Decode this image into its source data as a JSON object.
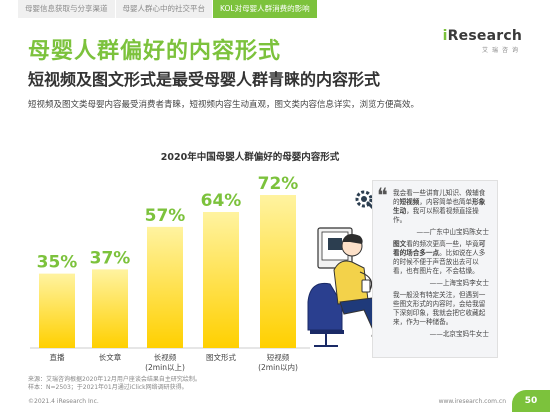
{
  "tabs": [
    {
      "label": "母婴信息获取与分享渠道",
      "active": false
    },
    {
      "label": "母婴人群心中的社交平台",
      "active": false
    },
    {
      "label": "KOL对母婴人群消费的影响",
      "active": true
    }
  ],
  "logo": {
    "mark_i": "i",
    "mark_rest": "Research",
    "sub": "艾瑞咨询"
  },
  "heading": {
    "title": "母婴人群偏好的内容形式",
    "subtitle": "短视频及图文形式是最受母婴人群青睐的内容形式",
    "description": "短视频及图文类母婴内容最受消费者青睐，短视频内容生动直观，图文类内容信息详实，浏览方便高效。"
  },
  "chart_data": {
    "type": "bar",
    "title": "2020年中国母婴人群偏好的母婴内容形式",
    "categories": [
      "直播",
      "长文章",
      "长视频\n(2min以上)",
      "图文形式",
      "短视频\n(2min以内)"
    ],
    "values": [
      35,
      37,
      57,
      64,
      72
    ],
    "value_labels": [
      "35%",
      "37%",
      "57%",
      "64%",
      "72%"
    ],
    "unit": "%",
    "highlight_color": "#ffd000",
    "bar_color_top": "#fff3a0",
    "label_color": "#7cc23c"
  },
  "quotes": [
    {
      "parts": [
        {
          "t": "我会看一些讲育儿知识、做辅食的",
          "b": false
        },
        {
          "t": "短视频",
          "b": true
        },
        {
          "t": "，内容简单也简单",
          "b": false
        },
        {
          "t": "形象生动",
          "b": true
        },
        {
          "t": "，我可以照着视频直接操作。",
          "b": false
        }
      ],
      "signature": "——广东中山宝妈陈女士"
    },
    {
      "parts": [
        {
          "t": "图文",
          "b": true
        },
        {
          "t": "看的频次更高一些，毕竟",
          "b": false
        },
        {
          "t": "可看的场合多一点",
          "b": true
        },
        {
          "t": "。比如说在人多的时候不便于声音放出去可以看，也有图片在，不会枯燥。",
          "b": false
        }
      ],
      "signature": "——上海宝妈李女士"
    },
    {
      "parts": [
        {
          "t": "我一般没有特定关注，但遇到一些图文形式的内容时，会给我留下深刻印象，我就会把它收藏起来，作为一种储备。",
          "b": false
        }
      ],
      "signature": "——北京宝妈牛女士"
    }
  ],
  "source": {
    "line1": "来源：艾瑞咨询根据2020年12月用户座谈会结果自主研究绘制。",
    "line2": "样本：N=2503；于2021年01月通过iClick网络调研获得。"
  },
  "footer": {
    "copyright": "©2021.4 iResearch Inc.",
    "url": "www.iresearch.com.cn",
    "page": "50"
  },
  "icons": {
    "quote": "left-quote-icon",
    "gear": "gear-wrench-icon",
    "person": "person-with-phone-illustration"
  }
}
